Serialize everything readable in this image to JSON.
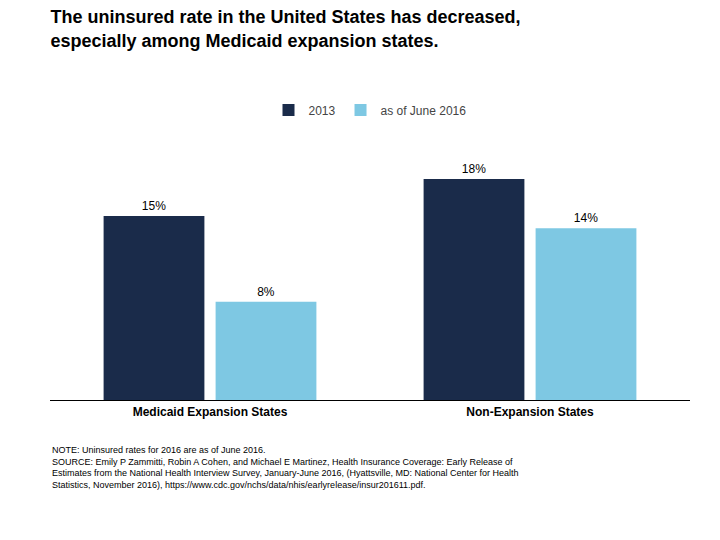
{
  "chart_data": {
    "type": "bar",
    "title": "The uninsured rate in the United States has decreased,\nespecially among Medicaid expansion states.",
    "categories": [
      "Medicaid Expansion States",
      "Non-Expansion States"
    ],
    "series": [
      {
        "name": "2013",
        "color": "#1a2b4a",
        "values": [
          15,
          18
        ],
        "value_labels": [
          "15%",
          "18%"
        ]
      },
      {
        "name": "as of June 2016",
        "color": "#7ec8e3",
        "values": [
          8,
          14
        ],
        "value_labels": [
          "8%",
          "14%"
        ]
      }
    ],
    "ylim": [
      0,
      22
    ],
    "grid": false,
    "legend": "top",
    "data_labels": true,
    "tick_labels": "x",
    "annotations": [
      "NOTE: Uninsured rates for 2016 are as of June 2016.",
      "SOURCE: Emily P Zammitti, Robin A Cohen, and Michael E Martinez, Health Insurance Coverage: Early Release of",
      "Estimates from the National Health Interview Survey, January-June 2016, (Hyattsville, MD: National Center for Health",
      "Statistics, November 2016), https://www.cdc.gov/nchs/data/nhis/earlyrelease/insur201611.pdf."
    ]
  }
}
